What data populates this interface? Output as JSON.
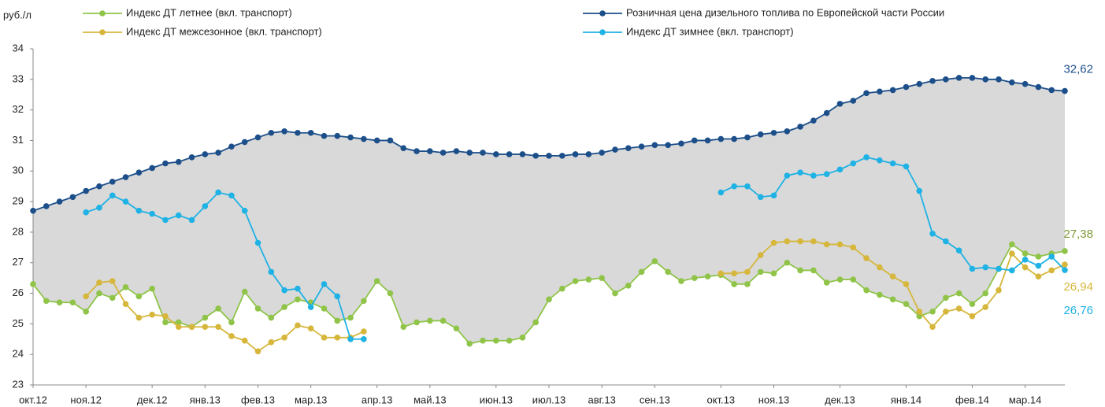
{
  "chart_data": {
    "type": "line",
    "y_label": "руб./л",
    "categories": [
      "окт.12",
      null,
      null,
      null,
      "ноя.12",
      null,
      null,
      null,
      null,
      "дек.12",
      null,
      null,
      null,
      "янв.13",
      null,
      null,
      null,
      "фев.13",
      null,
      null,
      null,
      "мар.13",
      null,
      null,
      null,
      null,
      "апр.13",
      null,
      null,
      null,
      "май.13",
      null,
      null,
      null,
      null,
      "июн.13",
      null,
      null,
      null,
      "июл.13",
      null,
      null,
      null,
      "авг.13",
      null,
      null,
      null,
      "сен.13",
      null,
      null,
      null,
      null,
      "окт.13",
      null,
      null,
      null,
      "ноя.13",
      null,
      null,
      null,
      null,
      "дек.13",
      null,
      null,
      null,
      null,
      "янв.14",
      null,
      null,
      null,
      null,
      "фев.14",
      null,
      null,
      null,
      "мар.14",
      null,
      null,
      null
    ],
    "ylim": [
      23,
      34
    ],
    "yticks": [
      23,
      24,
      25,
      26,
      27,
      28,
      29,
      30,
      31,
      32,
      33,
      34
    ],
    "series": [
      {
        "name": "Индекс ДТ летнее (вкл. транспорт)",
        "color": "#8fc449",
        "values": [
          26.3,
          25.75,
          25.7,
          25.7,
          25.4,
          26.0,
          25.85,
          26.2,
          25.9,
          26.15,
          25.05,
          25.05,
          24.9,
          25.2,
          25.5,
          25.05,
          26.05,
          25.5,
          25.2,
          25.55,
          25.8,
          25.7,
          25.5,
          25.1,
          25.2,
          25.75,
          26.4,
          26.0,
          24.9,
          25.05,
          25.1,
          25.1,
          24.85,
          24.35,
          24.45,
          24.45,
          24.45,
          24.55,
          25.05,
          25.8,
          26.15,
          26.4,
          26.45,
          26.5,
          26.0,
          26.25,
          26.7,
          27.05,
          26.7,
          26.4,
          26.5,
          26.55,
          26.6,
          26.3,
          26.3,
          26.7,
          26.65,
          27.0,
          26.75,
          26.75,
          26.35,
          26.45,
          26.45,
          26.1,
          25.95,
          25.8,
          25.65,
          25.25,
          25.4,
          25.85,
          26.0,
          25.65,
          26.0,
          26.8,
          27.6,
          27.3,
          27.2,
          27.3,
          27.38
        ],
        "value_labels": {
          "78": "27,38"
        },
        "label_color": "#7d9a36"
      },
      {
        "name": "Индекс ДТ межсезонное (вкл. транспорт)",
        "color": "#d6b73c",
        "values": [
          null,
          null,
          null,
          null,
          25.9,
          26.35,
          26.4,
          25.65,
          25.2,
          25.3,
          25.25,
          24.9,
          24.9,
          24.9,
          24.9,
          24.6,
          24.45,
          24.1,
          24.4,
          24.55,
          24.95,
          24.85,
          24.55,
          24.55,
          24.55,
          24.75,
          null,
          null,
          null,
          null,
          null,
          null,
          null,
          null,
          null,
          null,
          null,
          null,
          null,
          null,
          null,
          null,
          null,
          null,
          null,
          null,
          null,
          null,
          null,
          null,
          null,
          null,
          26.65,
          26.65,
          26.7,
          27.25,
          27.65,
          27.7,
          27.7,
          27.7,
          27.6,
          27.6,
          27.5,
          27.15,
          26.85,
          26.55,
          26.3,
          25.4,
          24.9,
          25.4,
          25.5,
          25.25,
          25.55,
          26.1,
          27.3,
          26.85,
          26.55,
          26.75,
          26.94
        ],
        "value_labels": {
          "78": "26,94"
        },
        "label_color": "#d6b73c"
      },
      {
        "name": "Розничная цена дизельного топлива по Европейской части России",
        "color": "#1c4f8a",
        "values": [
          28.7,
          28.85,
          29.0,
          29.15,
          29.35,
          29.5,
          29.65,
          29.8,
          29.95,
          30.1,
          30.25,
          30.3,
          30.45,
          30.55,
          30.6,
          30.8,
          30.95,
          31.1,
          31.25,
          31.3,
          31.25,
          31.25,
          31.15,
          31.15,
          31.1,
          31.05,
          31.0,
          31.0,
          30.75,
          30.65,
          30.65,
          30.6,
          30.65,
          30.6,
          30.6,
          30.55,
          30.55,
          30.55,
          30.5,
          30.5,
          30.5,
          30.55,
          30.55,
          30.6,
          30.7,
          30.75,
          30.8,
          30.85,
          30.85,
          30.9,
          31.0,
          31.0,
          31.05,
          31.05,
          31.1,
          31.2,
          31.25,
          31.3,
          31.45,
          31.65,
          31.9,
          32.2,
          32.3,
          32.55,
          32.6,
          32.65,
          32.75,
          32.85,
          32.95,
          33.0,
          33.05,
          33.05,
          33.0,
          33.0,
          32.9,
          32.85,
          32.75,
          32.65,
          32.62
        ],
        "value_labels": {
          "78": "32,62"
        },
        "label_color": "#1c4f8a"
      },
      {
        "name": "Индекс ДТ зимнее (вкл. транспорт)",
        "color": "#1fb2e4",
        "values": [
          null,
          null,
          null,
          null,
          28.65,
          28.8,
          29.2,
          29.0,
          28.7,
          28.6,
          28.4,
          28.55,
          28.4,
          28.85,
          29.3,
          29.2,
          28.7,
          27.65,
          26.7,
          26.1,
          26.15,
          25.55,
          26.3,
          25.9,
          24.5,
          24.5,
          null,
          null,
          null,
          null,
          null,
          null,
          null,
          null,
          null,
          null,
          null,
          null,
          null,
          null,
          null,
          null,
          null,
          null,
          null,
          null,
          null,
          null,
          null,
          null,
          null,
          null,
          29.3,
          29.5,
          29.5,
          29.15,
          29.2,
          29.85,
          29.95,
          29.85,
          29.9,
          30.05,
          30.25,
          30.45,
          30.35,
          30.25,
          30.15,
          29.35,
          27.95,
          27.7,
          27.4,
          26.8,
          26.85,
          26.8,
          26.75,
          27.1,
          26.9,
          27.2,
          26.76
        ],
        "value_labels": {
          "78": "26,76"
        },
        "label_color": "#1fb2e4"
      }
    ],
    "band": {
      "upper": 2,
      "lower": 0,
      "color": "#d9d9d9"
    }
  }
}
